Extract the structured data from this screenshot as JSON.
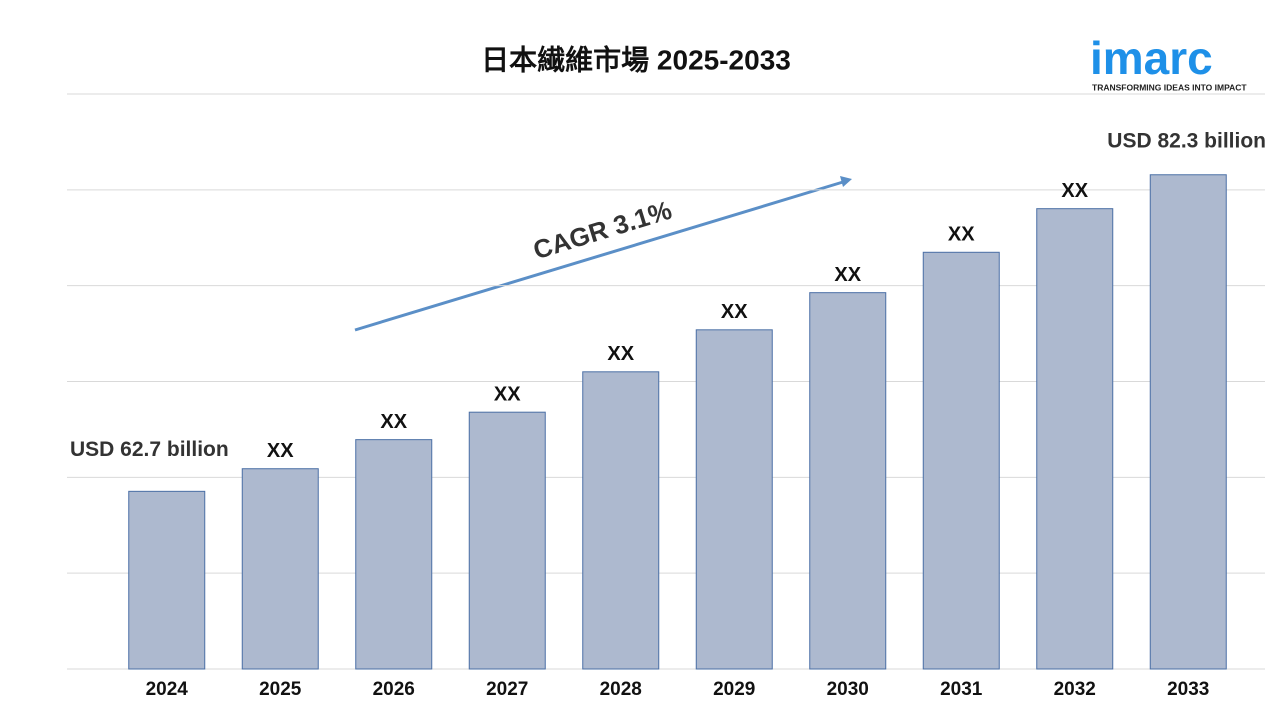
{
  "chart_data": {
    "type": "bar",
    "title": "日本繊維市場 2025-2033",
    "categories": [
      "2024",
      "2025",
      "2026",
      "2027",
      "2028",
      "2029",
      "2030",
      "2031",
      "2032",
      "2033"
    ],
    "values": [
      62.7,
      64.1,
      65.9,
      67.6,
      70.1,
      72.7,
      75.0,
      77.5,
      80.2,
      82.3
    ],
    "value_labels": [
      "USD 62.7 billion",
      "XX",
      "XX",
      "XX",
      "XX",
      "XX",
      "XX",
      "XX",
      "XX",
      "USD 82.3 billion"
    ],
    "color": "#adb9cf",
    "ylim": [
      51.7,
      87.3
    ],
    "grid": true,
    "annotation": "CAGR 3.1%",
    "logo": {
      "name": "imarc",
      "tagline": "TRANSFORMING IDEAS INTO IMPACT"
    }
  }
}
